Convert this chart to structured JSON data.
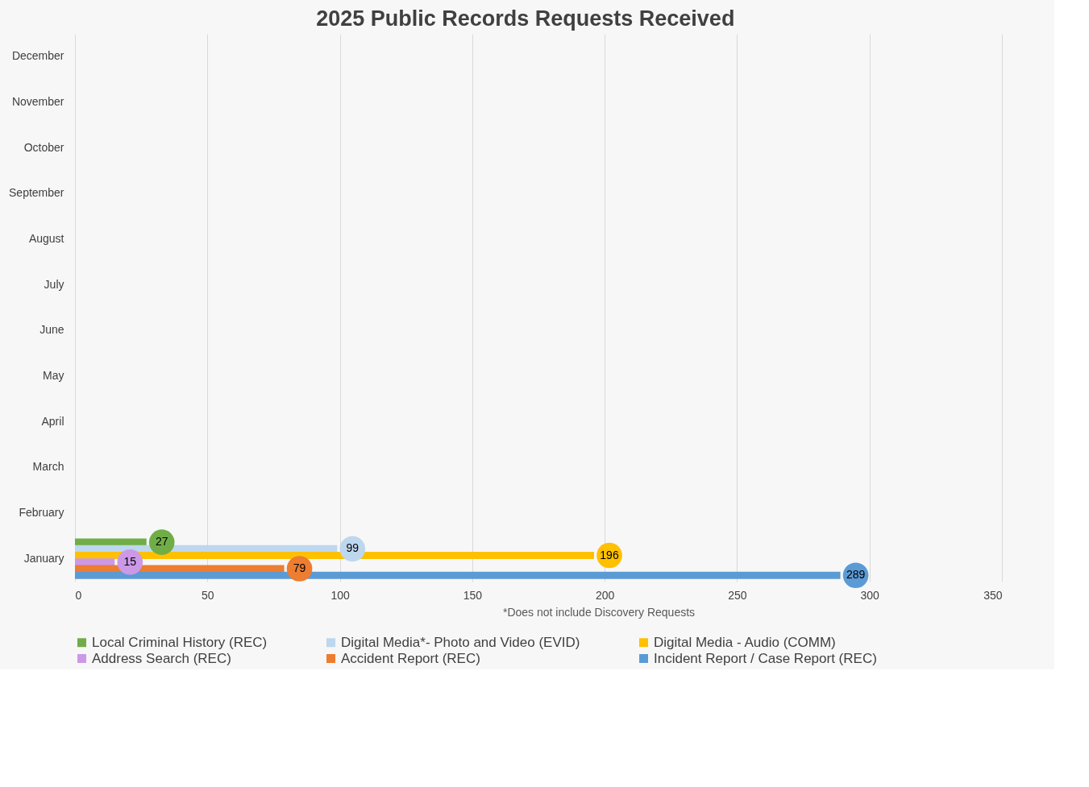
{
  "chart_data": {
    "type": "bar",
    "orientation": "horizontal",
    "title": "2025 Public Records Requests Received",
    "categories": [
      "December",
      "November",
      "October",
      "September",
      "August",
      "July",
      "June",
      "May",
      "April",
      "March",
      "February",
      "January"
    ],
    "series": [
      {
        "name": "Local Criminal History (REC)",
        "color": "#70ad47",
        "values": [
          null,
          null,
          null,
          null,
          null,
          null,
          null,
          null,
          null,
          null,
          null,
          27
        ]
      },
      {
        "name": "Digital Media*- Photo and Video (EVID)",
        "color": "#bdd7ee",
        "values": [
          null,
          null,
          null,
          null,
          null,
          null,
          null,
          null,
          null,
          null,
          null,
          99
        ]
      },
      {
        "name": "Digital Media - Audio (COMM)",
        "color": "#ffc000",
        "values": [
          null,
          null,
          null,
          null,
          null,
          null,
          null,
          null,
          null,
          null,
          null,
          196
        ]
      },
      {
        "name": "Address Search (REC)",
        "color": "#cc99e6",
        "values": [
          null,
          null,
          null,
          null,
          null,
          null,
          null,
          null,
          null,
          null,
          null,
          15
        ]
      },
      {
        "name": "Accident Report (REC)",
        "color": "#ed7d31",
        "values": [
          null,
          null,
          null,
          null,
          null,
          null,
          null,
          null,
          null,
          null,
          null,
          79
        ]
      },
      {
        "name": "Incident Report / Case Report (REC)",
        "color": "#5b9bd5",
        "values": [
          null,
          null,
          null,
          null,
          null,
          null,
          null,
          null,
          null,
          null,
          null,
          289
        ]
      }
    ],
    "xlim": [
      0,
      350
    ],
    "xticks": [
      0,
      50,
      100,
      150,
      200,
      250,
      300,
      350
    ],
    "grid": "x",
    "legend": "bottom",
    "data_labels": true,
    "annotations": [
      "*Does not include Discovery Requests"
    ]
  }
}
